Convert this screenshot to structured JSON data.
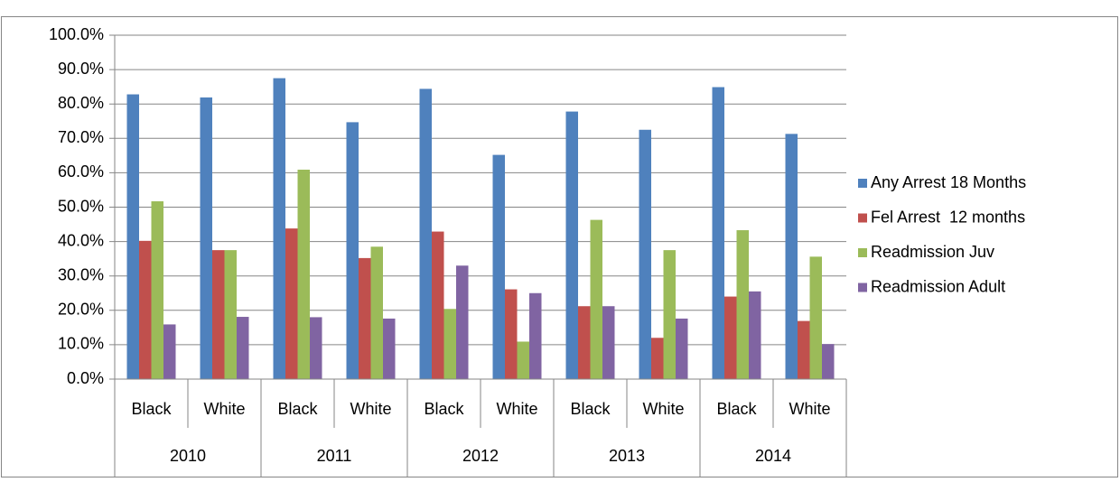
{
  "chart_data": {
    "type": "bar",
    "categories": [
      "Black",
      "White",
      "Black",
      "White",
      "Black",
      "White",
      "Black",
      "White",
      "Black",
      "White"
    ],
    "groups": [
      "2010",
      "2011",
      "2012",
      "2013",
      "2014"
    ],
    "series": [
      {
        "name": "Any Arrest 18 Months",
        "color": "#4f81bd",
        "values": [
          82.8,
          81.9,
          87.5,
          74.7,
          84.4,
          65.2,
          77.8,
          72.5,
          84.9,
          71.3
        ]
      },
      {
        "name": "Fel Arrest  12 months",
        "color": "#c0504d",
        "values": [
          40.2,
          37.5,
          43.8,
          35.2,
          42.9,
          26.1,
          21.2,
          12.0,
          24.0,
          16.9
        ]
      },
      {
        "name": "Readmission Juv",
        "color": "#9bbb59",
        "values": [
          51.7,
          37.5,
          60.9,
          38.5,
          20.4,
          10.9,
          46.3,
          37.5,
          43.3,
          35.6
        ]
      },
      {
        "name": "Readmission Adult",
        "color": "#8064a2",
        "values": [
          15.9,
          18.1,
          18.0,
          17.6,
          33.0,
          25.0,
          21.2,
          17.6,
          25.5,
          10.2
        ]
      }
    ],
    "ylim": [
      0,
      100
    ],
    "yticks": [
      {
        "value": 0,
        "label": "0.0%"
      },
      {
        "value": 10,
        "label": "10.0%"
      },
      {
        "value": 20,
        "label": "20.0%"
      },
      {
        "value": 30,
        "label": "30.0%"
      },
      {
        "value": 40,
        "label": "40.0%"
      },
      {
        "value": 50,
        "label": "50.0%"
      },
      {
        "value": 60,
        "label": "60.0%"
      },
      {
        "value": 70,
        "label": "70.0%"
      },
      {
        "value": 80,
        "label": "80.0%"
      },
      {
        "value": 90,
        "label": "90.0%"
      },
      {
        "value": 100,
        "label": "100.0%"
      }
    ],
    "grid": true,
    "legend": "right"
  }
}
